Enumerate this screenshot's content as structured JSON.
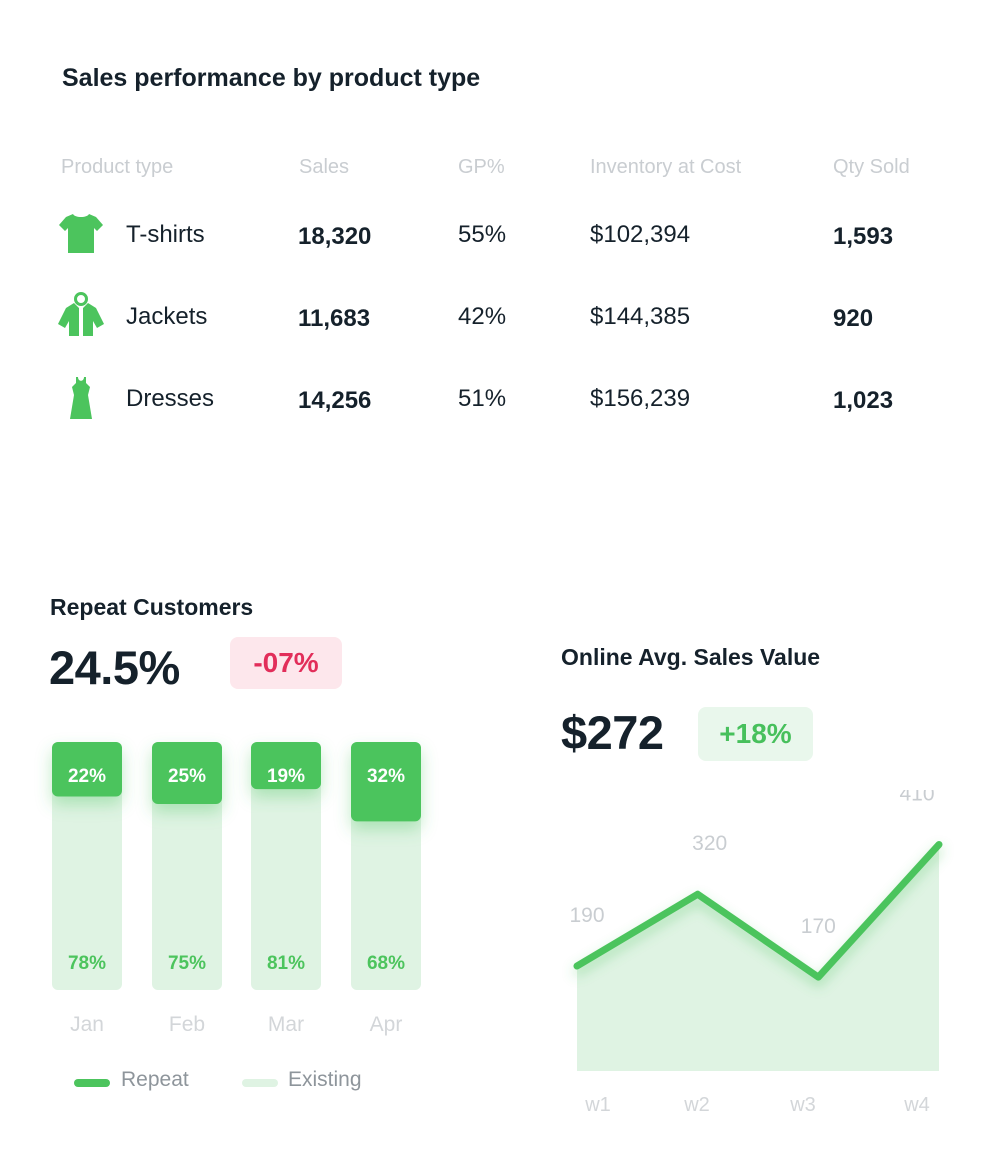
{
  "table": {
    "title": "Sales performance by product type",
    "columns": [
      "Product type",
      "Sales",
      "GP%",
      "Inventory at Cost",
      "Qty Sold"
    ],
    "rows": [
      {
        "icon": "t-shirt-icon",
        "name": "T-shirts",
        "sales": "18,320",
        "gp": "55%",
        "inventory": "$102,394",
        "qty": "1,593"
      },
      {
        "icon": "jacket-icon",
        "name": "Jackets",
        "sales": "11,683",
        "gp": "42%",
        "inventory": "$144,385",
        "qty": "920"
      },
      {
        "icon": "dress-icon",
        "name": "Dresses",
        "sales": "14,256",
        "gp": "51%",
        "inventory": "$156,239",
        "qty": "1,023"
      }
    ]
  },
  "repeat": {
    "title": "Repeat Customers",
    "value": "24.5%",
    "change": "-07%",
    "legend": [
      "Repeat",
      "Existing"
    ]
  },
  "online": {
    "title": "Online Avg. Sales Value",
    "value": "$272",
    "change": "+18%"
  },
  "colors": {
    "green": "#4cc45d",
    "green_light": "#dff3e3",
    "negative": "#e22e5a",
    "text": "#15212b",
    "muted": "#c9cdd1"
  },
  "chart_data": [
    {
      "type": "bar",
      "stacked": true,
      "categories": [
        "Jan",
        "Feb",
        "Mar",
        "Apr"
      ],
      "series": [
        {
          "name": "Repeat",
          "values": [
            22,
            25,
            19,
            32
          ],
          "labels": [
            "22%",
            "25%",
            "19%",
            "32%"
          ]
        },
        {
          "name": "Existing",
          "values": [
            78,
            75,
            81,
            68
          ],
          "labels": [
            "78%",
            "75%",
            "81%",
            "68%"
          ]
        }
      ],
      "ylim": [
        0,
        100
      ],
      "legend": "bottom"
    },
    {
      "type": "area",
      "x": [
        "w1",
        "w2",
        "w3",
        "w4"
      ],
      "values": [
        190,
        320,
        170,
        410
      ],
      "labels": [
        "190",
        "320",
        "170",
        "410"
      ],
      "ylim": [
        0,
        420
      ]
    }
  ]
}
